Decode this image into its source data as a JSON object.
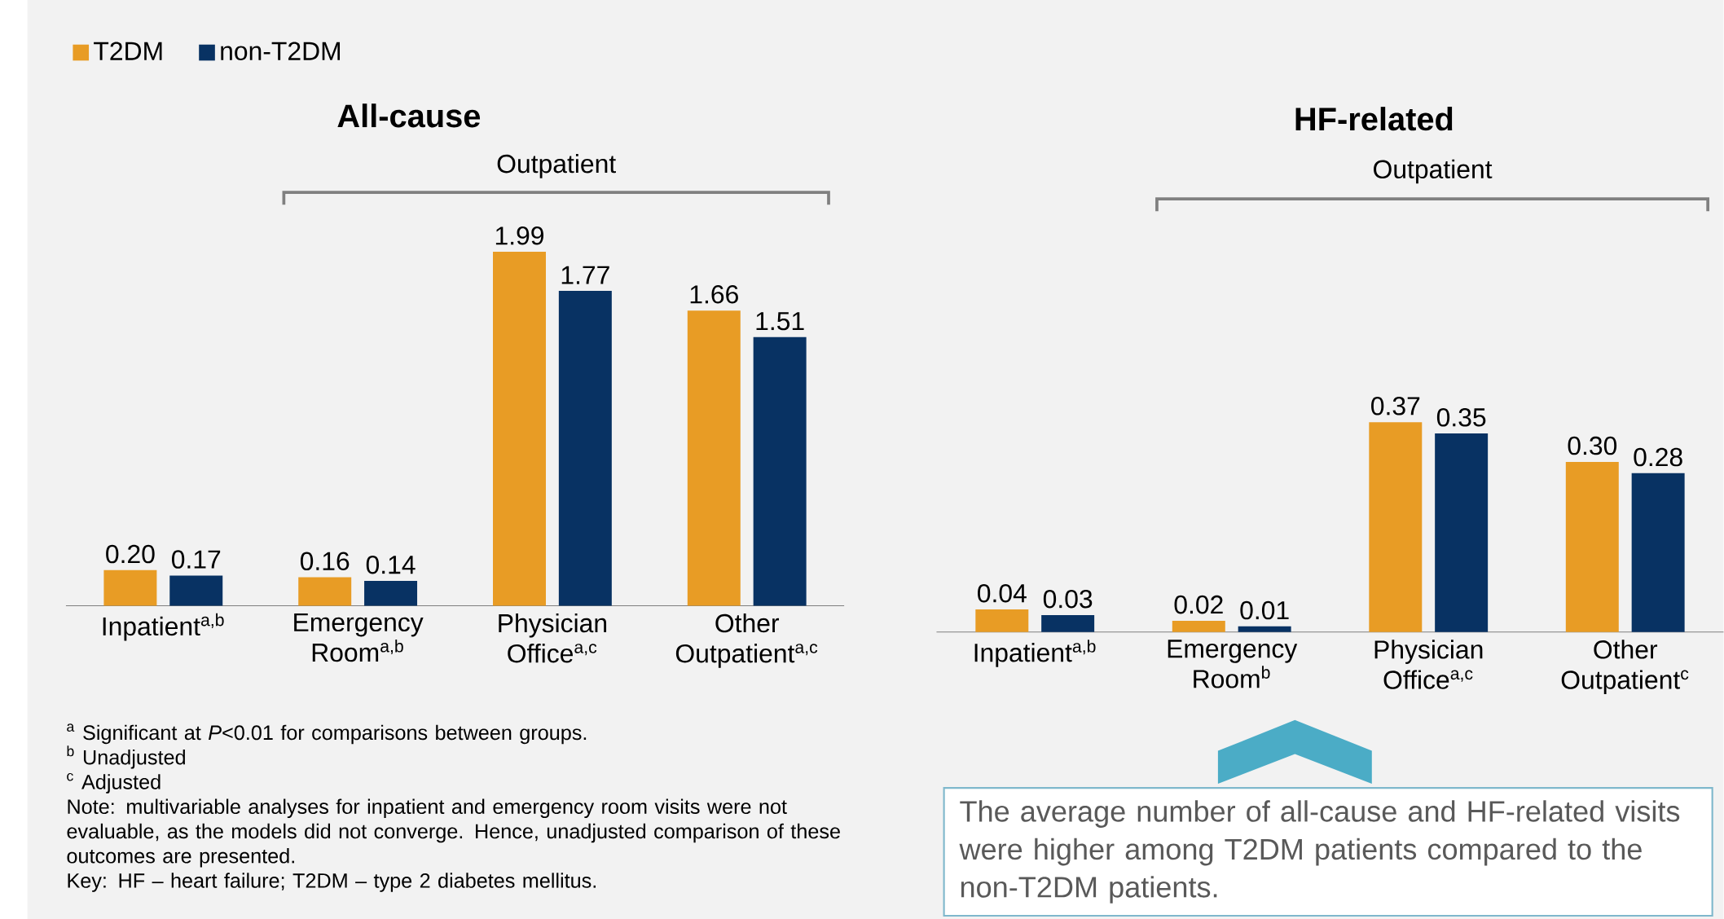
{
  "chart_data": [
    {
      "type": "bar",
      "title": "All-cause",
      "categories": [
        "Inpatient$^{a,b}$",
        "Emergency Room$^{a,b}$",
        "Physician Office$^{a,c}$",
        "Other Outpatient$^{a,c}$"
      ],
      "series": [
        {
          "name": "T2DM",
          "color": "#e89c25",
          "values": [
            0.2,
            0.16,
            1.99,
            1.66
          ],
          "value_labels": [
            "0.20",
            "0.16",
            "1.99",
            "1.66"
          ]
        },
        {
          "name": "non-T2DM",
          "color": "#083263",
          "values": [
            0.17,
            0.14,
            1.77,
            1.51
          ],
          "value_labels": [
            "0.17",
            "0.14",
            "1.77",
            "1.51"
          ]
        }
      ],
      "legend": "top left",
      "annotations": [
        "Outpatient",
        "$^{a}$ Significant at *P*<0.01 for comparisons between groups.",
        "$^{b}$ Unadjusted",
        "$^{c}$ Adjusted",
        "Note: multivariable analyses for inpatient and emergency room visits were not evaluable, as the models did not converge. Hence, unadjusted comparison of these outcomes are presented.",
        "Key: HF – heart failure; T2DM – type 2 diabetes mellitus."
      ]
    },
    {
      "type": "bar",
      "title": "HF-related",
      "categories": [
        "Inpatient$^{a,b}$",
        "Emergency Room$^{b}$",
        "Physician Office$^{a,c}$",
        "Other Outpatient$^{c}$"
      ],
      "series": [
        {
          "color": "#e89c25",
          "values": [
            0.04,
            0.02,
            0.37,
            0.3
          ],
          "value_labels": [
            "0.04",
            "0.02",
            "0.37",
            "0.30"
          ]
        },
        {
          "color": "#083263",
          "values": [
            0.03,
            0.01,
            0.35,
            0.28
          ],
          "value_labels": [
            "0.03",
            "0.01",
            "0.35",
            "0.28"
          ]
        }
      ],
      "annotations": [
        "Outpatient",
        "The average number of all-cause and HF-related visits were higher among T2DM patients compared to the non-T2DM patients."
      ]
    }
  ]
}
